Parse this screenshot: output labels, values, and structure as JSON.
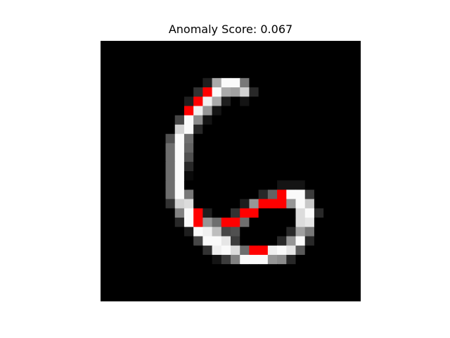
{
  "figure": {
    "title": "Anomaly Score: 0.067"
  },
  "colors": {
    "background": "#ffffff",
    "anomaly_highlight": "#ff0000"
  },
  "image": {
    "description_type": "28x28 grayscale digit (six) with anomalous pixels highlighted red",
    "grid_size": 28,
    "pixels": [
      [
        0,
        0,
        0,
        0,
        0,
        0,
        0,
        0,
        0,
        0,
        0,
        0,
        0,
        0,
        0,
        0,
        0,
        0,
        0,
        0,
        0,
        0,
        0,
        0,
        0,
        0,
        0,
        0
      ],
      [
        0,
        0,
        0,
        0,
        0,
        0,
        0,
        0,
        0,
        0,
        0,
        0,
        0,
        0,
        0,
        0,
        0,
        0,
        0,
        0,
        0,
        0,
        0,
        0,
        0,
        0,
        0,
        0
      ],
      [
        0,
        0,
        0,
        0,
        0,
        0,
        0,
        0,
        0,
        0,
        0,
        0,
        0,
        0,
        0,
        0,
        0,
        0,
        0,
        0,
        0,
        0,
        0,
        0,
        0,
        0,
        0,
        0
      ],
      [
        0,
        0,
        0,
        0,
        0,
        0,
        0,
        0,
        0,
        0,
        0,
        0,
        0,
        0,
        0,
        0,
        0,
        0,
        0,
        0,
        0,
        0,
        0,
        0,
        0,
        0,
        0,
        0
      ],
      [
        0,
        0,
        0,
        0,
        0,
        0,
        0,
        0,
        0,
        0,
        0,
        30,
        170,
        250,
        250,
        120,
        0,
        0,
        0,
        0,
        0,
        0,
        0,
        0,
        0,
        0,
        0,
        0
      ],
      [
        0,
        0,
        0,
        0,
        0,
        0,
        0,
        0,
        0,
        0,
        50,
        -1,
        250,
        170,
        160,
        210,
        40,
        0,
        0,
        0,
        0,
        0,
        0,
        0,
        0,
        0,
        0,
        0
      ],
      [
        0,
        0,
        0,
        0,
        0,
        0,
        0,
        0,
        0,
        30,
        -1,
        240,
        170,
        30,
        0,
        20,
        0,
        0,
        0,
        0,
        0,
        0,
        0,
        0,
        0,
        0,
        0,
        0
      ],
      [
        0,
        0,
        0,
        0,
        0,
        0,
        0,
        0,
        0,
        -1,
        240,
        150,
        20,
        0,
        0,
        0,
        0,
        0,
        0,
        0,
        0,
        0,
        0,
        0,
        0,
        0,
        0,
        0
      ],
      [
        0,
        0,
        0,
        0,
        0,
        0,
        0,
        0,
        70,
        250,
        140,
        20,
        0,
        0,
        0,
        0,
        0,
        0,
        0,
        0,
        0,
        0,
        0,
        0,
        0,
        0,
        0,
        0
      ],
      [
        0,
        0,
        0,
        0,
        0,
        0,
        0,
        0,
        210,
        250,
        40,
        0,
        0,
        0,
        0,
        0,
        0,
        0,
        0,
        0,
        0,
        0,
        0,
        0,
        0,
        0,
        0,
        0
      ],
      [
        0,
        0,
        0,
        0,
        0,
        0,
        0,
        80,
        250,
        110,
        0,
        0,
        0,
        0,
        0,
        0,
        0,
        0,
        0,
        0,
        0,
        0,
        0,
        0,
        0,
        0,
        0,
        0
      ],
      [
        0,
        0,
        0,
        0,
        0,
        0,
        0,
        110,
        250,
        100,
        0,
        0,
        0,
        0,
        0,
        0,
        0,
        0,
        0,
        0,
        0,
        0,
        0,
        0,
        0,
        0,
        0,
        0
      ],
      [
        0,
        0,
        0,
        0,
        0,
        0,
        0,
        110,
        250,
        80,
        0,
        0,
        0,
        0,
        0,
        0,
        0,
        0,
        0,
        0,
        0,
        0,
        0,
        0,
        0,
        0,
        0,
        0
      ],
      [
        0,
        0,
        0,
        0,
        0,
        0,
        0,
        110,
        250,
        40,
        0,
        0,
        0,
        0,
        0,
        0,
        0,
        0,
        0,
        0,
        0,
        0,
        0,
        0,
        0,
        0,
        0,
        0
      ],
      [
        0,
        0,
        0,
        0,
        0,
        0,
        0,
        110,
        250,
        10,
        0,
        0,
        0,
        0,
        0,
        0,
        0,
        0,
        0,
        0,
        0,
        0,
        0,
        0,
        0,
        0,
        0,
        0
      ],
      [
        0,
        0,
        0,
        0,
        0,
        0,
        0,
        110,
        250,
        0,
        0,
        0,
        0,
        0,
        0,
        0,
        0,
        0,
        0,
        20,
        20,
        20,
        0,
        0,
        0,
        0,
        0,
        0
      ],
      [
        0,
        0,
        0,
        0,
        0,
        0,
        0,
        110,
        250,
        120,
        0,
        0,
        0,
        0,
        0,
        0,
        0,
        40,
        100,
        -1,
        250,
        250,
        60,
        0,
        0,
        0,
        0,
        0
      ],
      [
        0,
        0,
        0,
        0,
        0,
        0,
        0,
        50,
        210,
        220,
        0,
        0,
        0,
        0,
        0,
        30,
        150,
        -1,
        -1,
        -1,
        150,
        250,
        200,
        0,
        0,
        0,
        0,
        0
      ],
      [
        0,
        0,
        0,
        0,
        0,
        0,
        0,
        0,
        130,
        250,
        -1,
        30,
        0,
        0,
        50,
        -1,
        -1,
        0,
        0,
        0,
        0,
        220,
        250,
        40,
        0,
        0,
        0,
        0
      ],
      [
        0,
        0,
        0,
        0,
        0,
        0,
        0,
        0,
        40,
        250,
        -1,
        150,
        110,
        -1,
        -1,
        110,
        0,
        0,
        0,
        0,
        0,
        220,
        230,
        0,
        0,
        0,
        0,
        0
      ],
      [
        0,
        0,
        0,
        0,
        0,
        0,
        0,
        0,
        0,
        30,
        250,
        240,
        190,
        70,
        80,
        0,
        0,
        0,
        0,
        0,
        40,
        160,
        120,
        0,
        0,
        0,
        0,
        0
      ],
      [
        0,
        0,
        0,
        0,
        0,
        0,
        0,
        0,
        0,
        0,
        70,
        250,
        250,
        230,
        60,
        0,
        0,
        0,
        0,
        40,
        150,
        250,
        40,
        0,
        0,
        0,
        0,
        0
      ],
      [
        0,
        0,
        0,
        0,
        0,
        0,
        0,
        0,
        0,
        0,
        0,
        50,
        240,
        250,
        220,
        110,
        -1,
        -1,
        240,
        250,
        230,
        90,
        0,
        0,
        0,
        0,
        0,
        0
      ],
      [
        0,
        0,
        0,
        0,
        0,
        0,
        0,
        0,
        0,
        0,
        0,
        0,
        20,
        60,
        130,
        250,
        250,
        250,
        150,
        140,
        40,
        0,
        0,
        0,
        0,
        0,
        0,
        0
      ],
      [
        0,
        0,
        0,
        0,
        0,
        0,
        0,
        0,
        0,
        0,
        0,
        0,
        0,
        0,
        0,
        0,
        0,
        0,
        0,
        0,
        0,
        0,
        0,
        0,
        0,
        0,
        0,
        0
      ],
      [
        0,
        0,
        0,
        0,
        0,
        0,
        0,
        0,
        0,
        0,
        0,
        0,
        0,
        0,
        0,
        0,
        0,
        0,
        0,
        0,
        0,
        0,
        0,
        0,
        0,
        0,
        0,
        0
      ],
      [
        0,
        0,
        0,
        0,
        0,
        0,
        0,
        0,
        0,
        0,
        0,
        0,
        0,
        0,
        0,
        0,
        0,
        0,
        0,
        0,
        0,
        0,
        0,
        0,
        0,
        0,
        0,
        0
      ],
      [
        0,
        0,
        0,
        0,
        0,
        0,
        0,
        0,
        0,
        0,
        0,
        0,
        0,
        0,
        0,
        0,
        0,
        0,
        0,
        0,
        0,
        0,
        0,
        0,
        0,
        0,
        0,
        0
      ]
    ]
  }
}
